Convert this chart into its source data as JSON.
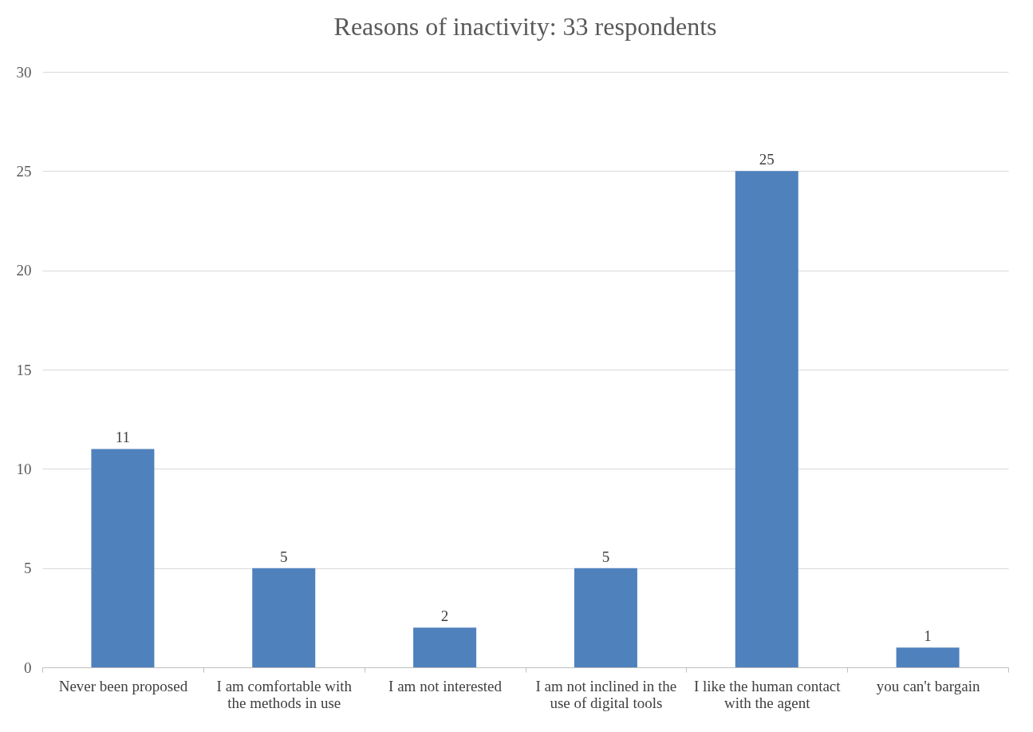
{
  "chart_data": {
    "type": "bar",
    "title": "Reasons of inactivity: 33 respondents",
    "categories": [
      "Never been proposed",
      "I am comfortable with the methods in use",
      "I am not interested",
      "I am not inclined in the use of digital tools",
      "I like the human contact with the agent",
      "you can't bargain"
    ],
    "values": [
      11,
      5,
      2,
      5,
      25,
      1
    ],
    "color": "#4f81bd",
    "ylim": [
      0,
      30
    ],
    "yticks": [
      0,
      5,
      10,
      15,
      20,
      25,
      30
    ],
    "grid": "y",
    "data_labels": true
  }
}
